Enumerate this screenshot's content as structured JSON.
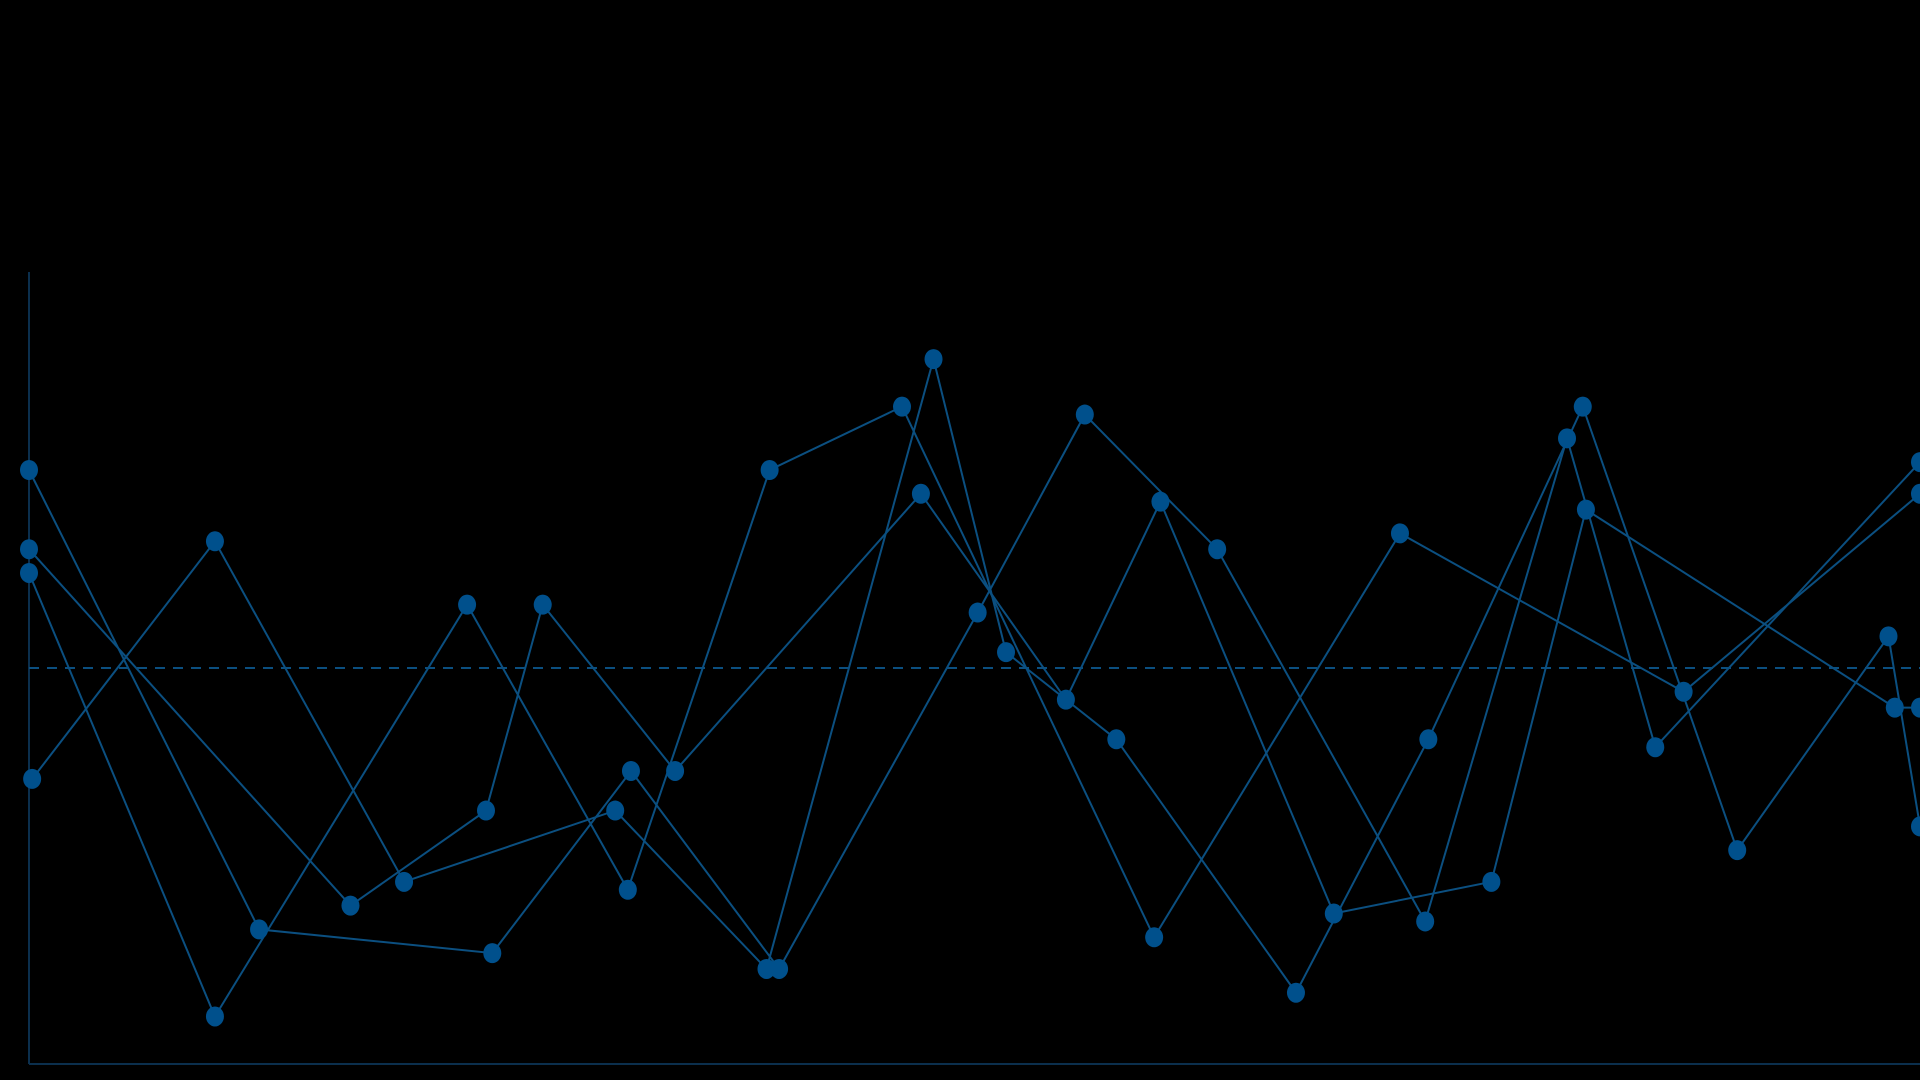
{
  "chart_data": {
    "type": "line",
    "title": "",
    "xlabel": "",
    "ylabel": "",
    "xlim": [
      0,
      60
    ],
    "ylim": [
      0,
      100
    ],
    "reference_line": {
      "y": 50,
      "style": "dashed"
    },
    "grid": false,
    "legend": "none",
    "colors": {
      "background": "#000000",
      "series": "#0b4f80",
      "marker": "#00508c",
      "axis": "#0b2f4d"
    },
    "series": [
      {
        "points": [
          [
            0,
            62
          ],
          [
            5.9,
            6
          ],
          [
            13.9,
            58
          ],
          [
            19,
            22
          ],
          [
            23.5,
            75
          ],
          [
            27.7,
            83
          ],
          [
            35.7,
            16
          ],
          [
            43.5,
            67
          ],
          [
            52.5,
            47
          ],
          [
            60,
            72
          ]
        ]
      },
      {
        "points": [
          [
            0.1,
            36
          ],
          [
            5.9,
            66
          ],
          [
            11.9,
            23
          ],
          [
            18.6,
            32
          ],
          [
            23.4,
            12
          ],
          [
            28.7,
            89
          ],
          [
            31,
            52
          ],
          [
            34.5,
            41
          ],
          [
            40.2,
            9
          ],
          [
            44.4,
            41
          ],
          [
            49.3,
            83
          ],
          [
            54.2,
            27
          ],
          [
            59,
            54
          ],
          [
            60,
            30
          ]
        ]
      },
      {
        "points": [
          [
            0,
            75
          ],
          [
            7.3,
            17
          ],
          [
            14.7,
            14
          ],
          [
            19.1,
            37
          ],
          [
            23.8,
            12
          ],
          [
            30.1,
            57
          ],
          [
            33.5,
            82
          ],
          [
            37.7,
            65
          ],
          [
            44.3,
            18
          ],
          [
            48.8,
            79
          ],
          [
            51.6,
            40
          ],
          [
            60,
            76
          ]
        ]
      },
      {
        "points": [
          [
            0,
            65
          ],
          [
            10.2,
            20
          ],
          [
            14.5,
            32
          ],
          [
            16.3,
            58
          ],
          [
            20.5,
            37
          ],
          [
            28.3,
            72
          ],
          [
            32.9,
            46
          ],
          [
            35.9,
            71
          ],
          [
            41.4,
            19
          ],
          [
            46.4,
            23
          ],
          [
            49.4,
            70
          ],
          [
            59.2,
            45
          ],
          [
            60,
            45
          ]
        ]
      }
    ]
  }
}
